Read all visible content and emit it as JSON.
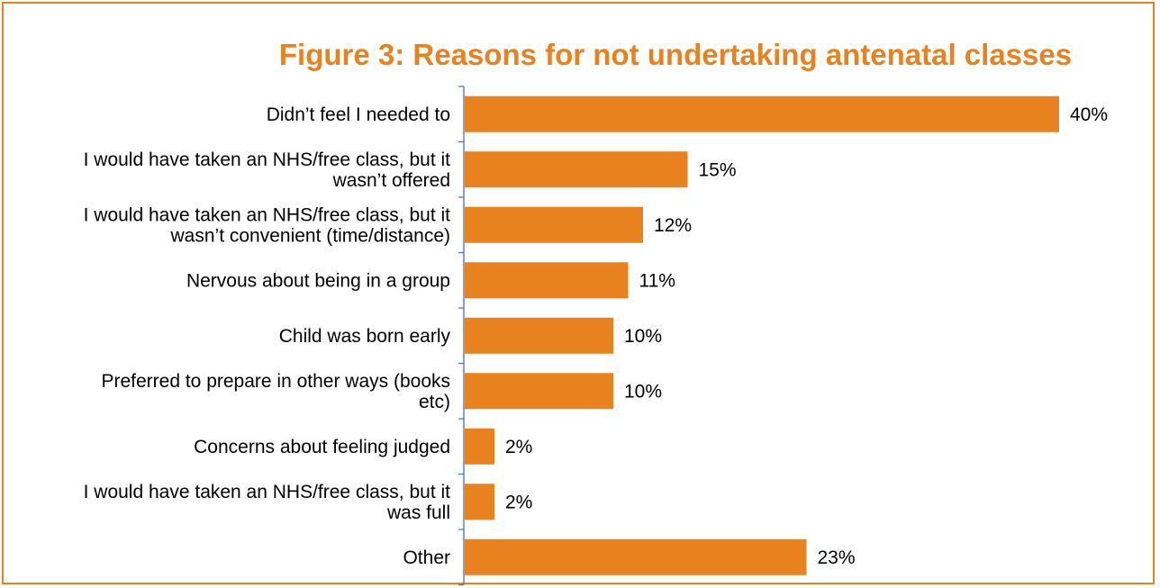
{
  "chart_data": {
    "type": "bar",
    "orientation": "horizontal",
    "title": "Figure 3: Reasons for not undertaking antenatal classes",
    "categories": [
      [
        "Didn’t feel I needed to"
      ],
      [
        "I would have taken an NHS/free class, but it",
        "wasn’t offered"
      ],
      [
        "I would have taken an NHS/free class, but it",
        "wasn’t convenient (time/distance)"
      ],
      [
        "Nervous about being in a group"
      ],
      [
        "Child was born early"
      ],
      [
        "Preferred to prepare in other ways (books",
        "etc)"
      ],
      [
        "Concerns about feeling judged"
      ],
      [
        "I would have taken an NHS/free class, but it",
        "was full"
      ],
      [
        "Other"
      ]
    ],
    "values": [
      40,
      15,
      12,
      11,
      10,
      10,
      2,
      2,
      23
    ],
    "value_labels": [
      "40%",
      "15%",
      "12%",
      "11%",
      "10%",
      "10%",
      "2%",
      "2%",
      "23%"
    ],
    "unit": "%",
    "xlim": [
      0,
      40
    ],
    "grid": false,
    "legend": "none",
    "bar_color": "#e8821f",
    "title_color": "#e8821f"
  }
}
